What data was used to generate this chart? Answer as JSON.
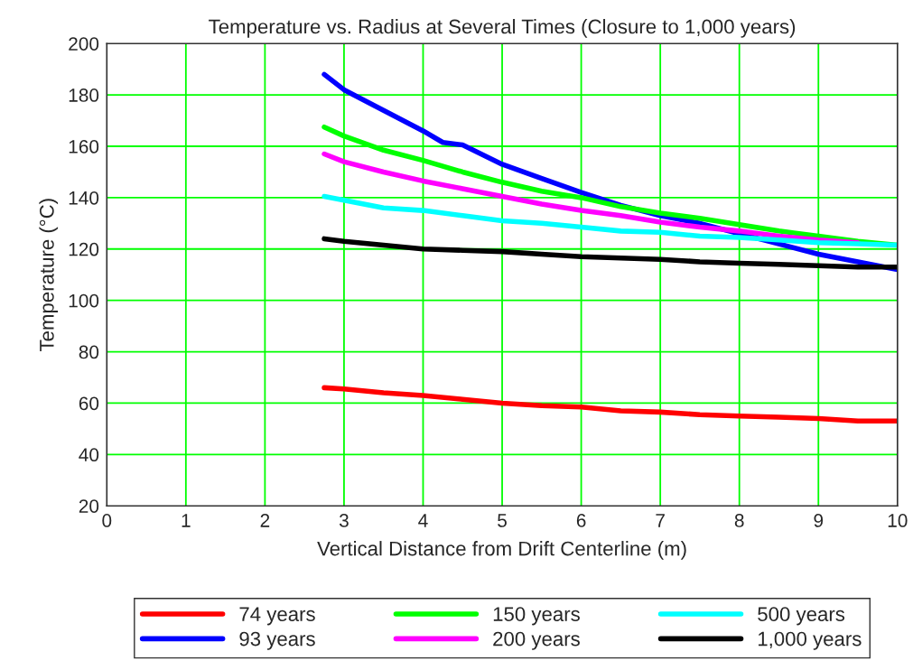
{
  "chart_data": {
    "type": "line",
    "title": "Temperature vs. Radius at Several Times (Closure to 1,000 years)",
    "xlabel": "Vertical Distance from Drift Centerline (m)",
    "ylabel": "Temperature (°C)",
    "x": [
      2.75,
      3,
      3.5,
      4,
      4.5,
      5,
      5.5,
      6,
      6.5,
      7,
      7.5,
      8,
      8.5,
      9,
      9.5,
      10
    ],
    "series": [
      {
        "name": "74 years",
        "color": "#ff0000",
        "values": [
          66,
          65.5,
          64,
          63,
          61.5,
          60,
          59,
          58.5,
          57,
          56.5,
          55.5,
          55,
          54.5,
          54,
          53,
          53
        ]
      },
      {
        "name": "93 years",
        "color": "#0000ff",
        "x": [
          2.75,
          3,
          3.5,
          4,
          4.25,
          4.5,
          5,
          5.5,
          6,
          6.5,
          7,
          7.5,
          8,
          8.5,
          9,
          9.5,
          10
        ],
        "values": [
          188,
          182,
          174,
          166,
          161.5,
          160.5,
          153,
          147.5,
          142,
          137,
          133,
          130,
          126,
          122,
          118,
          115,
          112
        ]
      },
      {
        "name": "150 years",
        "color": "#00ff00",
        "values": [
          167.5,
          164,
          158.5,
          154.5,
          150,
          146,
          142.5,
          140,
          136.5,
          134,
          132,
          129.5,
          127,
          125,
          123,
          121.5
        ]
      },
      {
        "name": "200 years",
        "color": "#ff00ff",
        "values": [
          157,
          154,
          150,
          146.5,
          143.5,
          140.5,
          137.5,
          135,
          133,
          130.5,
          128.5,
          127,
          125,
          123.5,
          122.5,
          null
        ]
      },
      {
        "name": "500 years",
        "color": "#00ffff",
        "values": [
          140.5,
          139,
          136,
          135,
          133,
          131,
          130,
          128.5,
          127,
          126.5,
          125,
          124.5,
          123.5,
          122.5,
          122,
          121.5
        ]
      },
      {
        "name": "1,000 years",
        "color": "#000000",
        "values": [
          124,
          123,
          121.5,
          120,
          119.5,
          119,
          118,
          117,
          116.5,
          116,
          115,
          114.5,
          114,
          113.5,
          113,
          113
        ]
      }
    ],
    "xlim": [
      0,
      10
    ],
    "xticks": [
      0,
      1,
      2,
      3,
      4,
      5,
      6,
      7,
      8,
      9,
      10
    ],
    "ylim": [
      20,
      200
    ],
    "yticks": [
      20,
      40,
      60,
      80,
      100,
      120,
      140,
      160,
      180,
      200
    ],
    "grid": true,
    "legend": "bottom",
    "line_style": "solid",
    "marker": "none"
  }
}
